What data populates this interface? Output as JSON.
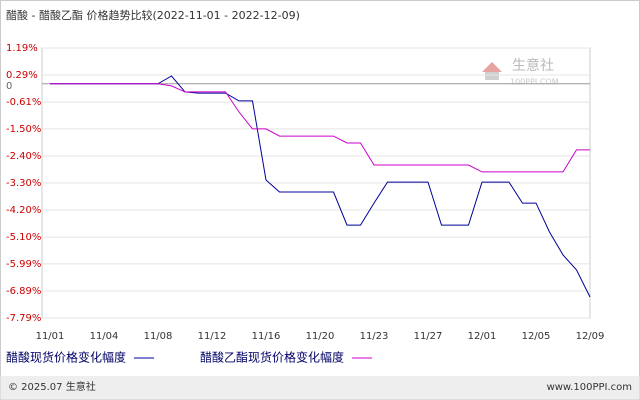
{
  "chart_data": {
    "type": "line",
    "title": "醋酸 - 醋酸乙酯 价格趋势比较(2022-11-01 - 2022-12-09)",
    "categories": [
      "11/01",
      null,
      null,
      null,
      "11/04",
      null,
      null,
      null,
      "11/08",
      null,
      null,
      null,
      "11/12",
      null,
      null,
      null,
      "11/16",
      null,
      null,
      null,
      "11/20",
      null,
      null,
      null,
      "11/23",
      null,
      null,
      null,
      "11/27",
      null,
      null,
      null,
      "12/01",
      null,
      null,
      null,
      "12/05",
      null,
      null,
      null,
      "12/09"
    ],
    "series": [
      {
        "name": "醋酸现货价格变化幅度",
        "color": "#000099",
        "values": [
          0,
          0,
          0,
          0,
          0,
          0,
          0,
          0,
          0,
          0.26,
          -0.27,
          -0.31,
          -0.31,
          -0.31,
          -0.57,
          -0.57,
          -3.2,
          -3.6,
          -3.6,
          -3.6,
          -3.6,
          -3.6,
          -4.7,
          -4.7,
          -3.97,
          -3.27,
          -3.27,
          -3.27,
          -3.27,
          -4.7,
          -4.7,
          -4.7,
          -3.27,
          -3.27,
          -3.27,
          -3.97,
          -3.97,
          -4.93,
          -5.69,
          -6.19,
          -7.09
        ]
      },
      {
        "name": "醋酸乙酯现货价格变化幅度",
        "color": "#cc00cc",
        "values": [
          0,
          0,
          0,
          0,
          0,
          0,
          0,
          0,
          0,
          -0.07,
          -0.27,
          -0.27,
          -0.27,
          -0.27,
          -0.94,
          -1.5,
          -1.5,
          -1.74,
          -1.74,
          -1.74,
          -1.74,
          -1.74,
          -1.97,
          -1.97,
          -2.7,
          -2.7,
          -2.7,
          -2.7,
          -2.7,
          -2.7,
          -2.7,
          -2.7,
          -2.93,
          -2.93,
          -2.93,
          -2.93,
          -2.93,
          -2.93,
          -2.93,
          -2.2,
          -2.2
        ]
      }
    ],
    "ylim": [
      -7.79,
      1.19
    ],
    "yticks": [
      {
        "value": 1.19,
        "label": "1.19%"
      },
      {
        "value": 0.29,
        "label": "0.29%"
      },
      0,
      {
        "value": -0.61,
        "label": "-0.61%"
      },
      {
        "value": -1.5,
        "label": "-1.50%"
      },
      {
        "value": -2.4,
        "label": "-2.40%"
      },
      {
        "value": -3.3,
        "label": "-3.30%"
      },
      {
        "value": -4.2,
        "label": "-4.20%"
      },
      {
        "value": -5.1,
        "label": "-5.10%"
      },
      {
        "value": -5.99,
        "label": "-5.99%"
      },
      {
        "value": -6.89,
        "label": "-6.89%"
      },
      {
        "value": -7.79,
        "label": "-7.79%"
      }
    ],
    "grid": true,
    "watermark": {
      "name": "生意社",
      "site": "100PPI.COM"
    },
    "footer": {
      "copyright": "© 2025.07 生意社",
      "url": "www.100PPI.com"
    }
  }
}
